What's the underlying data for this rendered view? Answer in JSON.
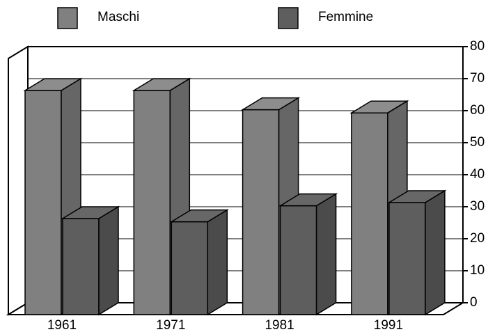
{
  "chart_data": {
    "type": "bar3d",
    "categories": [
      "1961",
      "1971",
      "1981",
      "1991"
    ],
    "series": [
      {
        "name": "Maschi",
        "color": "#808080",
        "values": [
          70,
          70,
          64,
          63
        ]
      },
      {
        "name": "Femmine",
        "color": "#5e5e5e",
        "values": [
          30,
          29,
          34,
          35
        ]
      }
    ],
    "ylim": [
      0,
      80
    ],
    "yticks": [
      0,
      10,
      20,
      30,
      40,
      50,
      60,
      70,
      80
    ],
    "grid": true,
    "legend": "top"
  }
}
